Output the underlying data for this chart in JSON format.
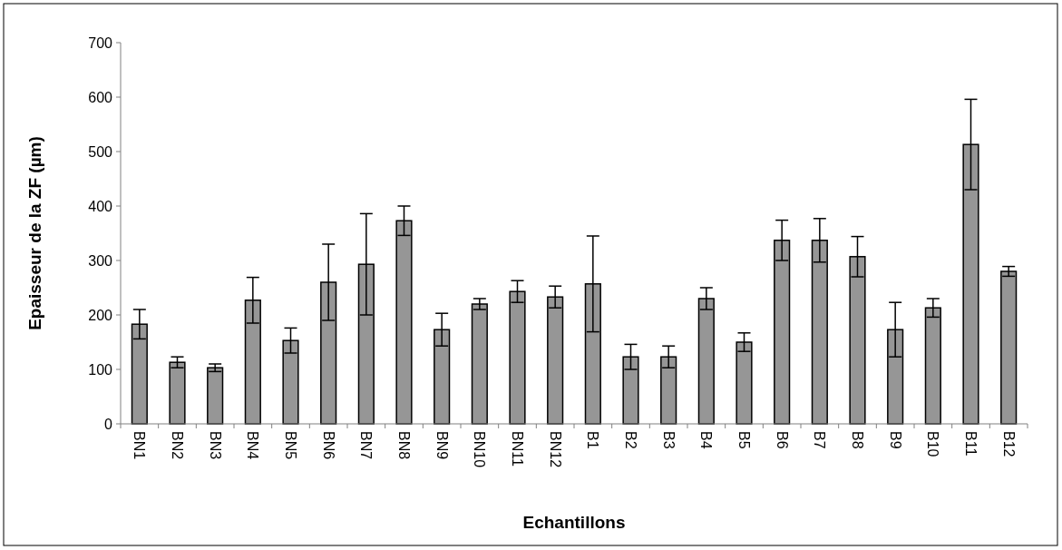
{
  "chart_data": {
    "type": "bar",
    "xlabel": "Echantillons",
    "ylabel": "Epaisseur de la ZF (µm)",
    "categories": [
      "BN1",
      "BN2",
      "BN3",
      "BN4",
      "BN5",
      "BN6",
      "BN7",
      "BN8",
      "BN9",
      "BN10",
      "BN11",
      "BN12",
      "B1",
      "B2",
      "B3",
      "B4",
      "B5",
      "B6",
      "B7",
      "B8",
      "B9",
      "B10",
      "B11",
      "B12"
    ],
    "values": [
      183,
      113,
      103,
      227,
      153,
      260,
      293,
      373,
      173,
      220,
      243,
      233,
      257,
      123,
      123,
      230,
      150,
      337,
      337,
      307,
      173,
      213,
      513,
      280
    ],
    "errors": [
      27,
      10,
      7,
      42,
      23,
      70,
      93,
      27,
      30,
      10,
      20,
      20,
      88,
      23,
      20,
      20,
      17,
      37,
      40,
      37,
      50,
      17,
      83,
      9
    ],
    "color": "#969696",
    "ylim": [
      0,
      700
    ],
    "yticks": [
      0,
      100,
      200,
      300,
      400,
      500,
      600,
      700
    ],
    "grid": false
  }
}
